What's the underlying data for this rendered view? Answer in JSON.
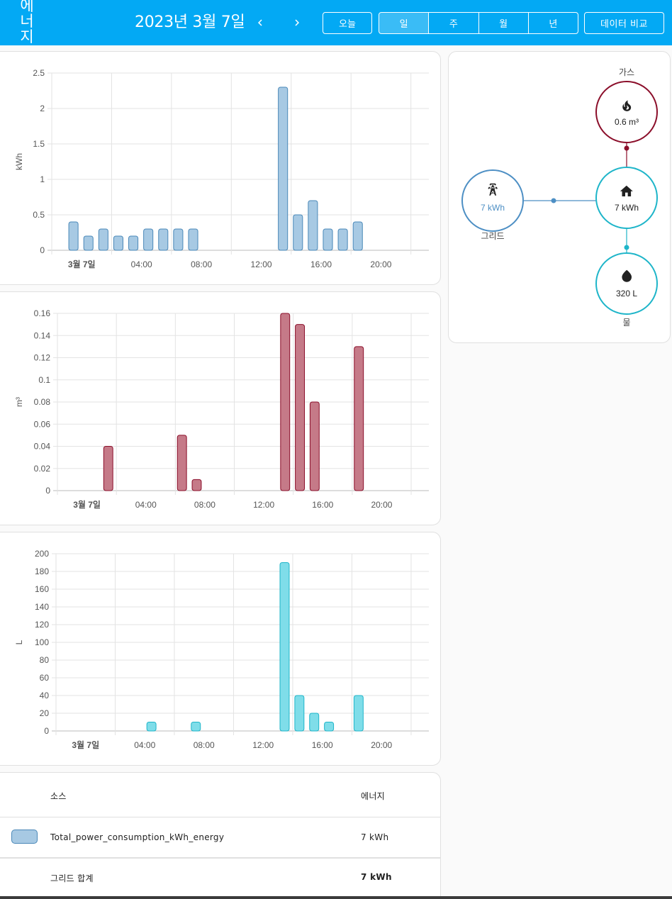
{
  "header": {
    "title": "에\n너\n지",
    "date": "2023년 3월 7일",
    "today_label": "오늘",
    "period_options": [
      "일",
      "주",
      "월",
      "년"
    ],
    "selected_period": "일",
    "compare_label": "데이터 비교",
    "icons": {
      "prev": "chevron-left-icon",
      "next": "chevron-right-icon"
    }
  },
  "colors": {
    "appbar": "#03a9f4",
    "electricity_fill": "#a7c9e3",
    "electricity_stroke": "#4a88b8",
    "gas_fill": "#c57a88",
    "gas_stroke": "#8b0e2a",
    "water_fill": "#7fdde9",
    "water_stroke": "#1eb5c9"
  },
  "chart_data": [
    {
      "type": "bar",
      "ylabel": "kWh",
      "ylim": [
        0,
        2.5
      ],
      "yticks": [
        "0",
        "0.5",
        "1",
        "1.5",
        "2",
        "2.5"
      ],
      "xticks": [
        "3월 7일",
        "04:00",
        "08:00",
        "12:00",
        "16:00",
        "20:00"
      ],
      "x": [
        1,
        2,
        3,
        4,
        5,
        6,
        7,
        8,
        9,
        15,
        16,
        17,
        18,
        19,
        20
      ],
      "values": [
        0.4,
        0.2,
        0.3,
        0.2,
        0.2,
        0.3,
        0.3,
        0.3,
        0.3,
        2.3,
        0.5,
        0.7,
        0.3,
        0.3,
        0.4
      ]
    },
    {
      "type": "bar",
      "ylabel": "m³",
      "ylim": [
        0,
        0.16
      ],
      "yticks": [
        "0",
        "0.02",
        "0.04",
        "0.06",
        "0.08",
        "0.1",
        "0.12",
        "0.14",
        "0.16"
      ],
      "xticks": [
        "3월 7일",
        "04:00",
        "08:00",
        "12:00",
        "16:00",
        "20:00"
      ],
      "x": [
        3,
        8,
        9,
        15,
        16,
        17,
        20
      ],
      "values": [
        0.04,
        0.05,
        0.01,
        0.16,
        0.15,
        0.08,
        0.13
      ]
    },
    {
      "type": "bar",
      "ylabel": "L",
      "ylim": [
        0,
        200
      ],
      "yticks": [
        "0",
        "20",
        "40",
        "60",
        "80",
        "100",
        "120",
        "140",
        "160",
        "180",
        "200"
      ],
      "xticks": [
        "3월 7일",
        "04:00",
        "08:00",
        "12:00",
        "16:00",
        "20:00"
      ],
      "x": [
        6,
        9,
        15,
        16,
        17,
        18,
        20
      ],
      "values": [
        10,
        10,
        190,
        40,
        20,
        10,
        40
      ]
    }
  ],
  "flow": {
    "gas": {
      "label": "가스",
      "value": "0.6 m³",
      "icon": "fire-icon"
    },
    "grid": {
      "label": "그리드",
      "value": "7 kWh",
      "icon": "transmission-tower-icon"
    },
    "home": {
      "value": "7 kWh",
      "icon": "home-icon"
    },
    "water": {
      "label": "물",
      "value": "320 L",
      "icon": "water-drop-icon"
    }
  },
  "table": {
    "headers": [
      "소스",
      "에너지"
    ],
    "rows": [
      {
        "source": "Total_power_consumption_kWh_energy",
        "energy": "7 kWh"
      }
    ],
    "total": {
      "label": "그리드 합계",
      "energy": "7 kWh"
    }
  }
}
